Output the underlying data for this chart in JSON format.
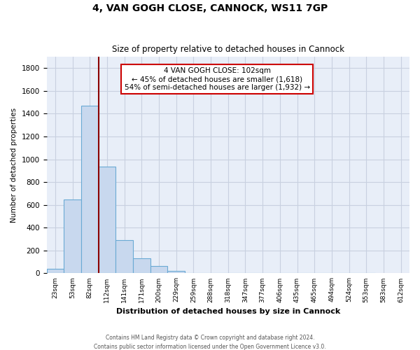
{
  "title": "4, VAN GOGH CLOSE, CANNOCK, WS11 7GP",
  "subtitle": "Size of property relative to detached houses in Cannock",
  "xlabel": "Distribution of detached houses by size in Cannock",
  "ylabel": "Number of detached properties",
  "bar_values": [
    40,
    650,
    1470,
    935,
    290,
    130,
    65,
    20,
    0,
    0,
    0,
    0,
    0,
    0,
    0,
    0,
    0,
    0,
    0
  ],
  "bin_labels": [
    "23sqm",
    "53sqm",
    "82sqm",
    "112sqm",
    "141sqm",
    "171sqm",
    "200sqm",
    "229sqm",
    "259sqm",
    "288sqm",
    "318sqm",
    "347sqm",
    "377sqm",
    "406sqm",
    "435sqm",
    "465sqm",
    "494sqm",
    "524sqm",
    "553sqm",
    "583sqm",
    "612sqm"
  ],
  "bar_color": "#c8d8ee",
  "bar_edge_color": "#6aaad4",
  "grid_color": "#c8d0e0",
  "bg_color": "#e8eef8",
  "vline_color": "#8b0000",
  "annotation_box_edge_color": "#cc0000",
  "annotation_box_facecolor": "white",
  "annotation_line1": "4 VAN GOGH CLOSE: 102sqm",
  "annotation_line2": "← 45% of detached houses are smaller (1,618)",
  "annotation_line3": "54% of semi-detached houses are larger (1,932) →",
  "ylim": [
    0,
    1900
  ],
  "yticks": [
    0,
    200,
    400,
    600,
    800,
    1000,
    1200,
    1400,
    1600,
    1800
  ],
  "footnote1": "Contains HM Land Registry data © Crown copyright and database right 2024.",
  "footnote2": "Contains public sector information licensed under the Open Government Licence v3.0."
}
